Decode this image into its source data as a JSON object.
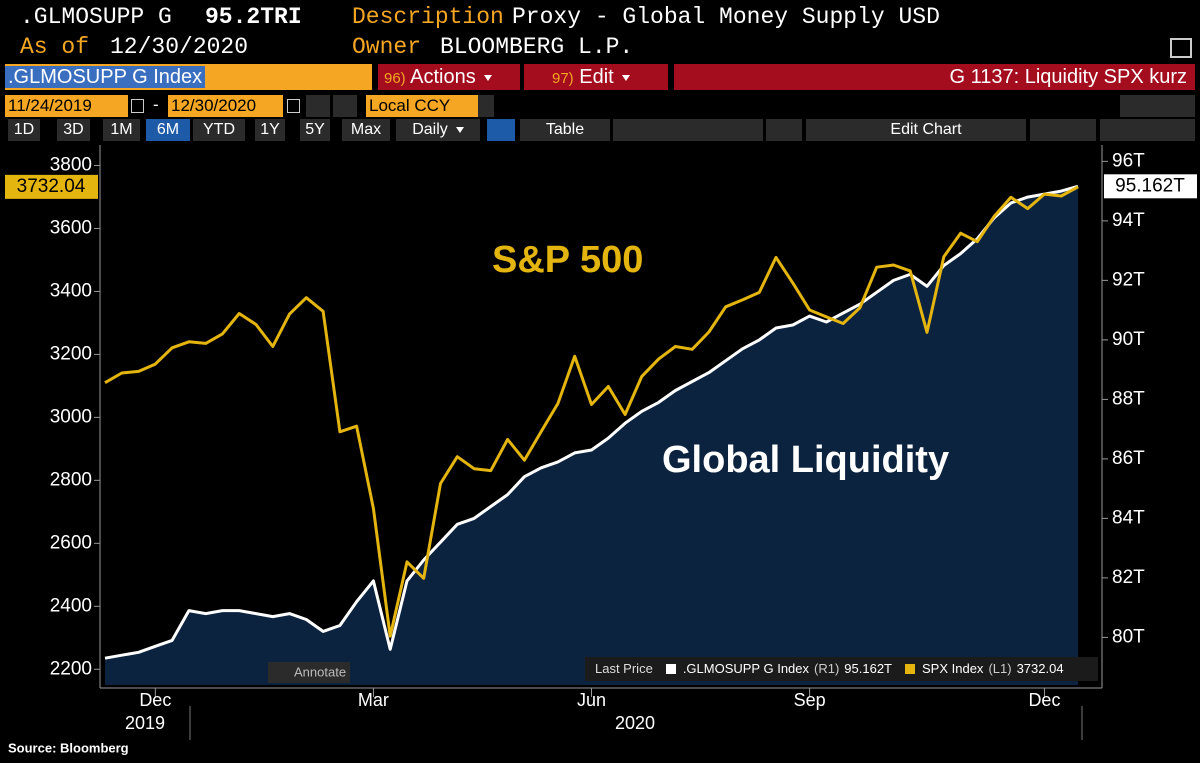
{
  "header": {
    "ticker": ".GLMOSUPP G",
    "ticker_value": "95.2TRI",
    "description_label": "Description",
    "description": "Proxy - Global Money Supply USD",
    "asof_label": "As of",
    "asof": "12/30/2020",
    "owner_label": "Owner",
    "owner": "BLOOMBERG L.P."
  },
  "toolbar": {
    "security": ".GLMOSUPP G Index",
    "actions_num": "96)",
    "actions": "Actions",
    "edit_num": "97)",
    "edit": "Edit",
    "page_title": "G 1137: Liquidity SPX kurz",
    "start_date": "11/24/2019",
    "date_separator": "-",
    "end_date": "12/30/2020",
    "currency": "Local CCY",
    "ranges": [
      "1D",
      "3D",
      "1M",
      "6M",
      "YTD",
      "1Y",
      "5Y",
      "Max"
    ],
    "active_range": "6M",
    "frequency": "Daily",
    "table": "Table",
    "edit_chart": "Edit Chart",
    "annotate": "Annotate"
  },
  "chart_data": {
    "type": "line",
    "annotations": [
      "S&P 500",
      "Global Liquidity"
    ],
    "categories": [
      null,
      null,
      null,
      "Dec",
      null,
      null,
      null,
      null,
      null,
      null,
      null,
      null,
      null,
      null,
      null,
      null,
      "Mar",
      null,
      null,
      null,
      null,
      null,
      null,
      null,
      null,
      null,
      null,
      null,
      null,
      "Jun",
      null,
      null,
      null,
      null,
      null,
      null,
      null,
      null,
      null,
      null,
      null,
      null,
      "Sep",
      null,
      null,
      null,
      null,
      null,
      null,
      null,
      null,
      null,
      null,
      null,
      null,
      null,
      "Dec",
      null,
      null
    ],
    "x_group_labels": [
      "2019",
      "2020"
    ],
    "ylim": [
      2150,
      3865
    ],
    "yticks": [
      2200,
      2400,
      2600,
      2800,
      3000,
      3200,
      3400,
      3600,
      3800
    ],
    "y2lim": [
      78.4,
      96.55
    ],
    "y2ticks": [
      {
        "value": 80,
        "label": "80T"
      },
      {
        "value": 82,
        "label": "82T"
      },
      {
        "value": 84,
        "label": "84T"
      },
      {
        "value": 86,
        "label": "86T"
      },
      {
        "value": 88,
        "label": "88T"
      },
      {
        "value": 90,
        "label": "90T"
      },
      {
        "value": 92,
        "label": "92T"
      },
      {
        "value": 94,
        "label": "94T"
      },
      {
        "value": 96,
        "label": "96T"
      }
    ],
    "legend_title": "Last Price",
    "series": [
      {
        "name": ".GLMOSUPP G Index",
        "legend_tag": "(R1)",
        "last_label": "95.162T",
        "color": "#ffffff",
        "fill": "#0c2340",
        "axis": "y2",
        "values": [
          79.3,
          79.4,
          79.5,
          79.7,
          79.9,
          80.9,
          80.8,
          80.9,
          80.9,
          80.8,
          80.7,
          80.8,
          80.6,
          80.2,
          80.4,
          81.2,
          81.9,
          79.6,
          81.9,
          82.6,
          83.2,
          83.8,
          84.0,
          84.4,
          84.8,
          85.4,
          85.7,
          85.9,
          86.2,
          86.3,
          86.7,
          87.2,
          87.6,
          87.9,
          88.3,
          88.6,
          88.9,
          89.3,
          89.7,
          90.0,
          90.4,
          90.5,
          90.8,
          90.6,
          90.9,
          91.2,
          91.6,
          92.0,
          92.2,
          91.8,
          92.5,
          92.9,
          93.4,
          94.1,
          94.6,
          94.8,
          94.9,
          95.0,
          95.162
        ]
      },
      {
        "name": "SPX Index",
        "legend_tag": "(L1)",
        "last_label": "3732.04",
        "color": "#e5b50f",
        "axis": "y",
        "values": [
          3110,
          3141,
          3146,
          3169,
          3221,
          3240,
          3235,
          3265,
          3330,
          3295,
          3225,
          3328,
          3380,
          3337,
          2954,
          2972,
          2711,
          2305,
          2541,
          2489,
          2790,
          2875,
          2837,
          2831,
          2930,
          2864,
          2955,
          3044,
          3194,
          3041,
          3098,
          3009,
          3130,
          3185,
          3225,
          3216,
          3271,
          3351,
          3373,
          3397,
          3508,
          3427,
          3341,
          3319,
          3298,
          3348,
          3477,
          3484,
          3465,
          3270,
          3510,
          3585,
          3558,
          3638,
          3699,
          3663,
          3709,
          3703,
          3732.04
        ]
      }
    ]
  },
  "footer": {
    "source": "Source: Bloomberg"
  }
}
